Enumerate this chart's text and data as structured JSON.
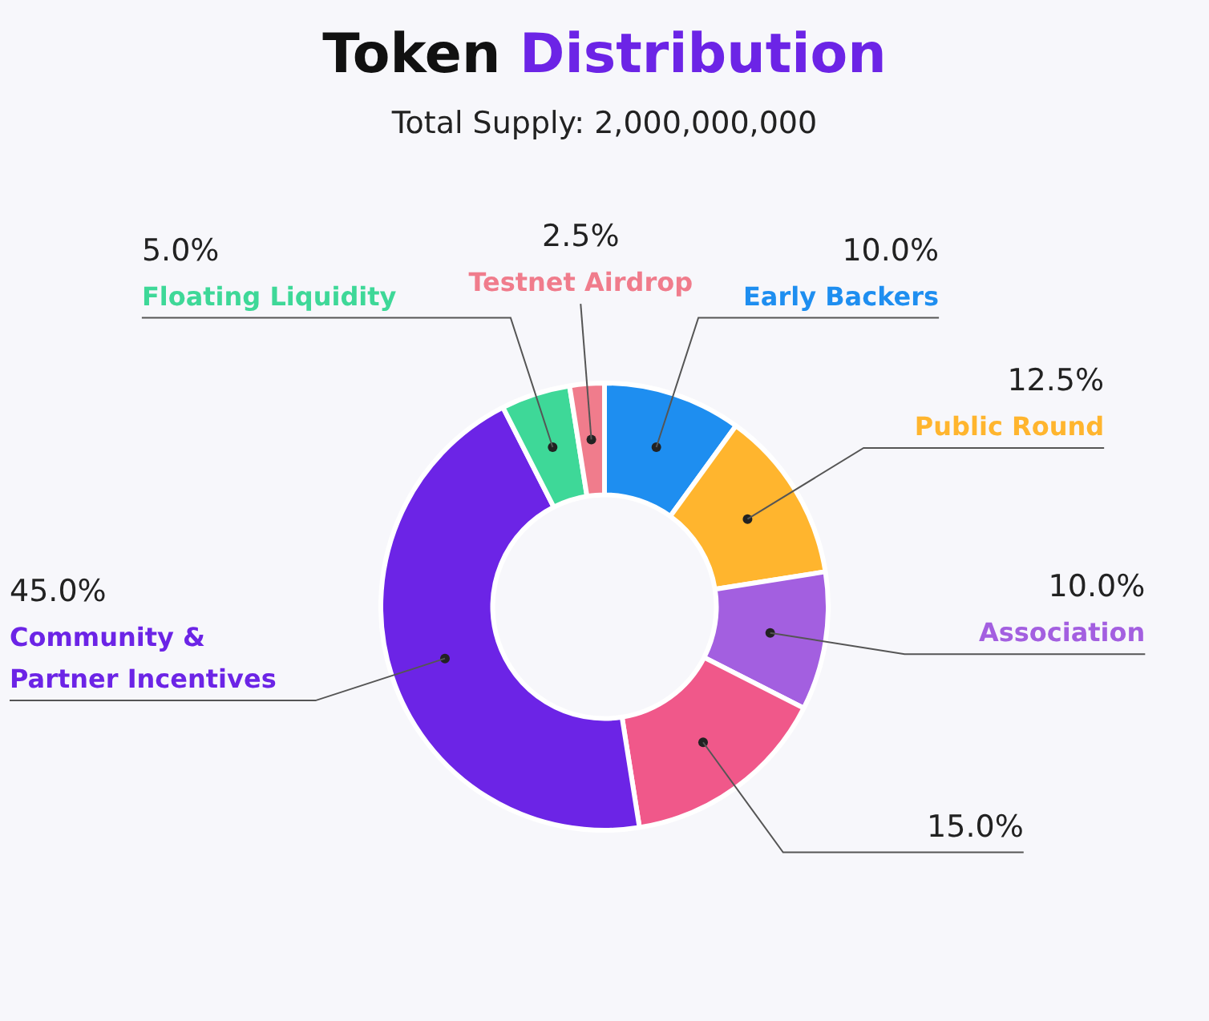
{
  "chart_data": {
    "type": "donut",
    "title": "Token Distribution",
    "subtitle": "Total Supply: 2,000,000,000",
    "categories": [
      "Early Backers",
      "Public Round",
      "Association",
      null,
      "Community & Partner Incentives",
      "Floating Liquidity",
      "Testnet Airdrop"
    ],
    "values": [
      10.0,
      12.5,
      10.0,
      15.0,
      45.0,
      5.0,
      2.5
    ],
    "value_labels": [
      "10.0%",
      "12.5%",
      "10.0%",
      "15.0%",
      "45.0%",
      "5.0%",
      "2.5%"
    ],
    "colors": [
      "#1e8ef0",
      "#ffb52e",
      "#a35fe0",
      "#f0588a",
      "#6c24e6",
      "#3ed898",
      "#f07c8c"
    ],
    "legend": false
  }
}
